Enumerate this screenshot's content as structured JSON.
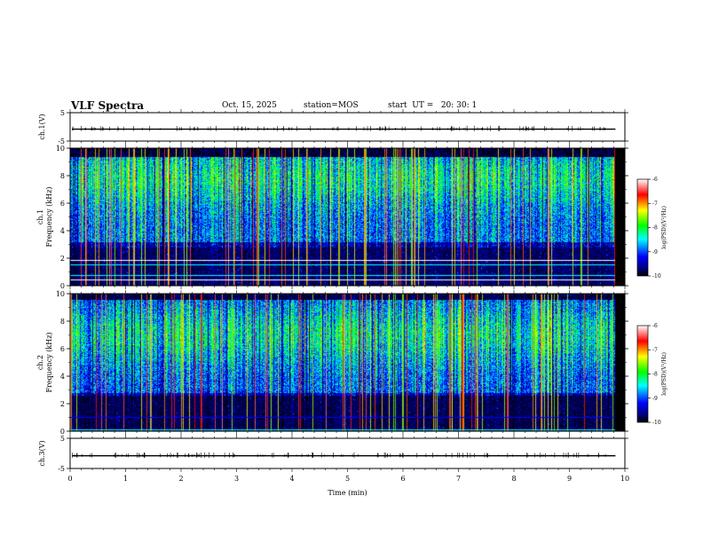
{
  "header": {
    "title": "VLF Spectra",
    "date": "Oct. 15, 2025",
    "station": "station=MOS",
    "start_ut": "start  UT =   20: 30: 1"
  },
  "chart_data": [
    {
      "type": "line",
      "name": "ch1-waveform",
      "ylabel": "ch.1(V)",
      "ylim": [
        -5,
        5
      ],
      "yticks": [
        "5",
        "-5"
      ],
      "trace_level": 0,
      "xlim": [
        0,
        10
      ]
    },
    {
      "type": "heatmap",
      "name": "ch1-spectrogram",
      "ylabel": "ch.1\nFrequency (kHz)",
      "ylabel_line1": "ch.1",
      "ylabel_line2": "Frequency (kHz)",
      "ylim": [
        0,
        10
      ],
      "yticks": [
        "0",
        "2",
        "4",
        "6",
        "8",
        "10"
      ],
      "xlim": [
        0,
        10
      ],
      "data_end_min": 9.83,
      "colorbar": {
        "label": "log(PSD)(V²/Hz)",
        "range": [
          -10,
          -6
        ],
        "ticks": [
          "-6",
          "-7",
          "-8",
          "-9",
          "-10"
        ]
      }
    },
    {
      "type": "heatmap",
      "name": "ch2-spectrogram",
      "ylabel": "ch.2\nFrequency (kHz)",
      "ylabel_line1": "ch.2",
      "ylabel_line2": "Frequency (kHz)",
      "ylim": [
        0,
        10
      ],
      "yticks": [
        "0",
        "2",
        "4",
        "6",
        "8",
        "10"
      ],
      "xlim": [
        0,
        10
      ],
      "data_end_min": 9.83,
      "colorbar": {
        "label": "log(PSD)(V²/Hz)",
        "range": [
          -10,
          -6
        ],
        "ticks": [
          "-6",
          "-7",
          "-8",
          "-9",
          "-10"
        ]
      }
    },
    {
      "type": "line",
      "name": "ch3-waveform",
      "ylabel": "ch.3(V)",
      "ylim": [
        -5,
        5
      ],
      "yticks": [
        "5",
        "-5"
      ],
      "trace_level": 0,
      "xlim": [
        0,
        10
      ],
      "xlabel": "Time (min)",
      "xticks": [
        "0",
        "1",
        "2",
        "3",
        "4",
        "5",
        "6",
        "7",
        "8",
        "9",
        "10"
      ]
    }
  ],
  "colors": {
    "colormap": [
      "#000000",
      "#0000ff",
      "#00ffff",
      "#00ff00",
      "#ffff00",
      "#ff0000",
      "#ffffff"
    ]
  }
}
